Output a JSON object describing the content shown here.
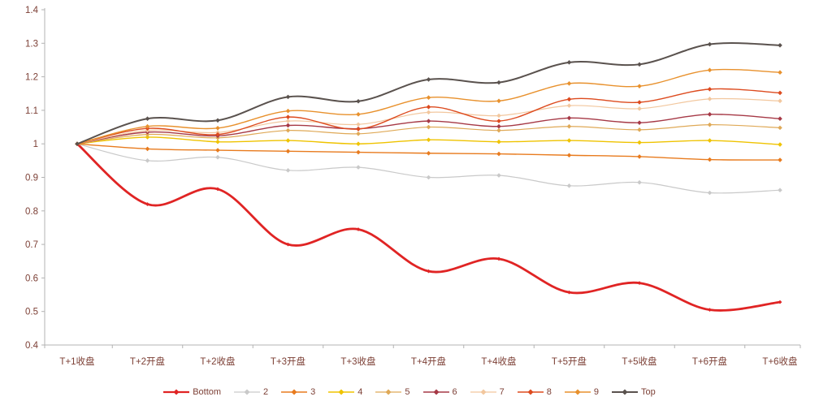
{
  "chart_data": {
    "type": "line",
    "title": "",
    "xlabel": "",
    "ylabel": "",
    "categories": [
      "T+1收盘",
      "T+2开盘",
      "T+2收盘",
      "T+3开盘",
      "T+3收盘",
      "T+4开盘",
      "T+4收盘",
      "T+5开盘",
      "T+5收盘",
      "T+6开盘",
      "T+6收盘"
    ],
    "ylim": [
      0.4,
      1.4
    ],
    "ytick_step": 0.1,
    "ytick_labels": [
      "0.4",
      "0.5",
      "0.6",
      "0.7",
      "0.8",
      "0.9",
      "1",
      "1.1",
      "1.2",
      "1.3",
      "1.4"
    ],
    "grid": false,
    "legend_position": "bottom",
    "axis_color": "#b3b3b3",
    "text_color": "#7c3f35",
    "series": [
      {
        "name": "Bottom",
        "color": "#e02424",
        "line_width": 2.8,
        "marker": "diamond",
        "values": [
          1,
          0.82,
          0.865,
          0.7,
          0.745,
          0.62,
          0.657,
          0.557,
          0.585,
          0.505,
          0.528
        ]
      },
      {
        "name": "2",
        "color": "#c9c9c9",
        "line_width": 1.2,
        "marker": "diamond",
        "values": [
          1,
          0.95,
          0.96,
          0.921,
          0.93,
          0.9,
          0.906,
          0.875,
          0.885,
          0.854,
          0.862
        ]
      },
      {
        "name": "3",
        "color": "#e87b1e",
        "line_width": 1.4,
        "marker": "diamond",
        "values": [
          1,
          0.985,
          0.981,
          0.978,
          0.975,
          0.972,
          0.97,
          0.966,
          0.962,
          0.953,
          0.952
        ]
      },
      {
        "name": "4",
        "color": "#efc300",
        "line_width": 1.4,
        "marker": "diamond",
        "values": [
          1,
          1.02,
          1.006,
          1.01,
          1.0,
          1.012,
          1.006,
          1.01,
          1.004,
          1.01,
          0.998
        ]
      },
      {
        "name": "5",
        "color": "#dfa957",
        "line_width": 1.2,
        "marker": "diamond",
        "values": [
          1,
          1.028,
          1.018,
          1.04,
          1.03,
          1.05,
          1.04,
          1.052,
          1.042,
          1.057,
          1.048
        ]
      },
      {
        "name": "6",
        "color": "#a63946",
        "line_width": 1.4,
        "marker": "diamond",
        "values": [
          1,
          1.035,
          1.024,
          1.055,
          1.045,
          1.068,
          1.052,
          1.077,
          1.063,
          1.088,
          1.075
        ]
      },
      {
        "name": "7",
        "color": "#f2c79e",
        "line_width": 1.2,
        "marker": "diamond",
        "values": [
          1,
          1.04,
          1.034,
          1.068,
          1.058,
          1.094,
          1.084,
          1.114,
          1.105,
          1.134,
          1.128
        ]
      },
      {
        "name": "8",
        "color": "#dd4b1f",
        "line_width": 1.4,
        "marker": "diamond",
        "values": [
          1,
          1.046,
          1.028,
          1.08,
          1.044,
          1.11,
          1.068,
          1.133,
          1.124,
          1.163,
          1.152
        ]
      },
      {
        "name": "9",
        "color": "#e8912d",
        "line_width": 1.4,
        "marker": "diamond",
        "values": [
          1,
          1.052,
          1.047,
          1.098,
          1.088,
          1.138,
          1.128,
          1.18,
          1.172,
          1.22,
          1.213
        ]
      },
      {
        "name": "Top",
        "color": "#5a524e",
        "line_width": 2.0,
        "marker": "diamond",
        "values": [
          1,
          1.075,
          1.07,
          1.14,
          1.127,
          1.192,
          1.183,
          1.243,
          1.237,
          1.297,
          1.294
        ]
      }
    ]
  }
}
